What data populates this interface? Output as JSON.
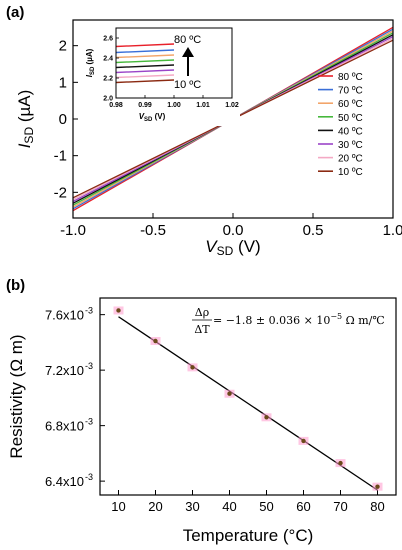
{
  "panels": [
    {
      "label": "(a)"
    },
    {
      "label": "(b)"
    }
  ],
  "chart_data": [
    {
      "type": "line",
      "panel": "(a)",
      "xlabel": {
        "main": "V",
        "sub": "SD",
        "unit": " (V)"
      },
      "ylabel": {
        "main": "I",
        "sub": "SD",
        "unit": " (µA)"
      },
      "xlim": [
        -1.0,
        1.0
      ],
      "ylim": [
        -2.7,
        2.7
      ],
      "xticks": [
        -1.0,
        -0.5,
        0.0,
        0.5,
        1.0
      ],
      "xtick_labels": [
        "-1.0",
        "-0.5",
        "0.0",
        "0.5",
        "1.0"
      ],
      "yticks": [
        -2,
        -1,
        0,
        1,
        2
      ],
      "ytick_labels": [
        "-2",
        "-1",
        "0",
        "1",
        "2"
      ],
      "grid": false,
      "legend_position": "right",
      "series": [
        {
          "name": "80 ºC",
          "color": "#e8202a",
          "x": [
            -1.0,
            1.0
          ],
          "y": [
            -2.5,
            2.5
          ]
        },
        {
          "name": "70 ºC",
          "color": "#3a6fd8",
          "x": [
            -1.0,
            1.0
          ],
          "y": [
            -2.45,
            2.45
          ]
        },
        {
          "name": "60 ºC",
          "color": "#f2a56a",
          "x": [
            -1.0,
            1.0
          ],
          "y": [
            -2.4,
            2.4
          ]
        },
        {
          "name": "50 ºC",
          "color": "#46b83c",
          "x": [
            -1.0,
            1.0
          ],
          "y": [
            -2.35,
            2.35
          ]
        },
        {
          "name": "40 ºC",
          "color": "#111111",
          "x": [
            -1.0,
            1.0
          ],
          "y": [
            -2.3,
            2.3
          ]
        },
        {
          "name": "30 ºC",
          "color": "#9b45c8",
          "x": [
            -1.0,
            1.0
          ],
          "y": [
            -2.25,
            2.25
          ]
        },
        {
          "name": "20 ºC",
          "color": "#f4a9c4",
          "x": [
            -1.0,
            1.0
          ],
          "y": [
            -2.2,
            2.2
          ]
        },
        {
          "name": "10 ºC",
          "color": "#8b2a12",
          "x": [
            -1.0,
            1.0
          ],
          "y": [
            -2.15,
            2.15
          ]
        }
      ],
      "inset": {
        "xlabel": {
          "main": "V",
          "sub": "SD",
          "unit": " (V)"
        },
        "ylabel": {
          "main": "I",
          "sub": "SD",
          "unit": " (µA)"
        },
        "xlim": [
          0.98,
          1.02
        ],
        "ylim": [
          2.0,
          2.7
        ],
        "xticks": [
          0.98,
          0.99,
          1.0,
          1.01,
          1.02
        ],
        "xtick_labels": [
          "0.98",
          "0.99",
          "1.00",
          "1.01",
          "1.02"
        ],
        "yticks": [
          2.0,
          2.2,
          2.4,
          2.6
        ],
        "ytick_labels": [
          "2.0",
          "2.2",
          "2.4",
          "2.6"
        ],
        "top_label": "80 ºC",
        "bottom_label": "10 ºC",
        "series_x": [
          0.98,
          1.0
        ],
        "series_y": [
          [
            2.515,
            2.54
          ],
          [
            2.455,
            2.48
          ],
          [
            2.405,
            2.43
          ],
          [
            2.355,
            2.38
          ],
          [
            2.305,
            2.33
          ],
          [
            2.255,
            2.28
          ],
          [
            2.205,
            2.23
          ],
          [
            2.155,
            2.18
          ]
        ]
      }
    },
    {
      "type": "scatter",
      "panel": "(b)",
      "xlabel": "Temperature (°C)",
      "ylabel": "Resistivity (Ω m)",
      "xlim": [
        5,
        85
      ],
      "ylim": [
        0.0063,
        0.00772
      ],
      "xticks": [
        10,
        20,
        30,
        40,
        50,
        60,
        70,
        80
      ],
      "xtick_labels": [
        "10",
        "20",
        "30",
        "40",
        "50",
        "60",
        "70",
        "80"
      ],
      "yticks": [
        0.0064,
        0.0068,
        0.0072,
        0.0076
      ],
      "ytick_labels": [
        {
          "mantissa": "6.4x10",
          "exp": "-3"
        },
        {
          "mantissa": "6.8x10",
          "exp": "-3"
        },
        {
          "mantissa": "7.2x10",
          "exp": "-3"
        },
        {
          "mantissa": "7.6x10",
          "exp": "-3"
        }
      ],
      "grid": false,
      "x": [
        10,
        20,
        30,
        40,
        50,
        60,
        70,
        80
      ],
      "y": [
        0.00763,
        0.00741,
        0.00722,
        0.00703,
        0.00686,
        0.00669,
        0.00653,
        0.00636
      ],
      "point_color": "#ff99cc",
      "fit_line": {
        "x": [
          10,
          80
        ],
        "y": [
          0.007585,
          0.006335
        ],
        "color": "#000000"
      },
      "annotation": {
        "numerator": "Δρ",
        "denominator": "ΔT",
        "text": " = −1.8 ± 0.036 × 10",
        "exp": "−5",
        "unit": " Ω m/℃"
      }
    }
  ]
}
